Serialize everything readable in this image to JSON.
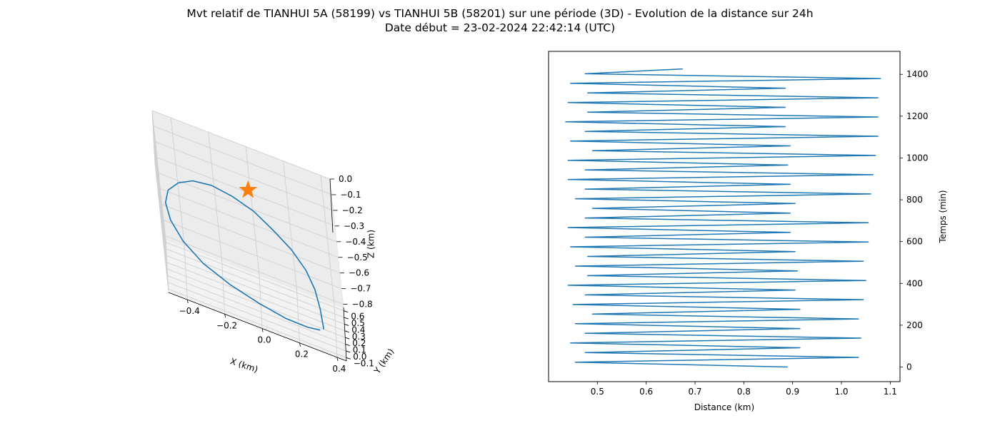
{
  "figure": {
    "title_line1": "Mvt relatif de TIANHUI 5A (58199) vs TIANHUI 5B (58201) sur une période (3D) - Evolution de la distance sur 24h",
    "title_line2": "Date début = 23-02-2024 22:42:14 (UTC)"
  },
  "colors": {
    "series": "#1f77b4",
    "marker": "#ff7f0e",
    "pane": "#f2f2f2",
    "grid": "#d0d0d0",
    "axis": "#000000"
  },
  "chart_data": [
    {
      "type": "line",
      "projection": "3d",
      "xlabel": "X (km)",
      "ylabel": "Y (km)",
      "zlabel": "Z (km)",
      "xlim": [
        -0.5,
        0.45
      ],
      "ylim": [
        -0.15,
        0.65
      ],
      "zlim": [
        -0.82,
        0.0
      ],
      "xticks": [
        -0.4,
        -0.2,
        0.0,
        0.2,
        0.4
      ],
      "xtick_labels": [
        "−0.4",
        "−0.2",
        "0.0",
        "0.2",
        "0.4"
      ],
      "yticks": [
        -0.1,
        0.0,
        0.1,
        0.2,
        0.3,
        0.4,
        0.5,
        0.6
      ],
      "ytick_labels": [
        "−0.1",
        "0.0",
        "0.1",
        "0.2",
        "0.3",
        "0.4",
        "0.5",
        "0.6"
      ],
      "zticks": [
        0.0,
        -0.1,
        -0.2,
        -0.3,
        -0.4,
        -0.5,
        -0.6,
        -0.7,
        -0.8
      ],
      "ztick_labels": [
        "0.0",
        "−0.1",
        "−0.2",
        "−0.3",
        "−0.4",
        "−0.5",
        "−0.6",
        "−0.7",
        "−0.8"
      ],
      "grid": true,
      "series": [
        {
          "marker": "line",
          "points": [
            [
              0.34,
              -0.03,
              -0.72
            ],
            [
              0.33,
              0.08,
              -0.64
            ],
            [
              0.31,
              0.18,
              -0.57
            ],
            [
              0.27,
              0.26,
              -0.5
            ],
            [
              0.2,
              0.33,
              -0.43
            ],
            [
              0.11,
              0.38,
              -0.37
            ],
            [
              0.01,
              0.42,
              -0.31
            ],
            [
              -0.1,
              0.43,
              -0.27
            ],
            [
              -0.21,
              0.43,
              -0.25
            ],
            [
              -0.31,
              0.39,
              -0.25
            ],
            [
              -0.39,
              0.32,
              -0.27
            ],
            [
              -0.45,
              0.24,
              -0.31
            ],
            [
              -0.47,
              0.15,
              -0.36
            ],
            [
              -0.45,
              0.05,
              -0.42
            ],
            [
              -0.39,
              -0.04,
              -0.49
            ],
            [
              -0.29,
              -0.1,
              -0.56
            ],
            [
              -0.15,
              -0.13,
              -0.62
            ],
            [
              0.0,
              -0.13,
              -0.67
            ],
            [
              0.14,
              -0.11,
              -0.71
            ],
            [
              0.25,
              -0.07,
              -0.73
            ],
            [
              0.32,
              -0.04,
              -0.73
            ]
          ]
        },
        {
          "marker": "star",
          "points": [
            [
              0.0,
              0.0,
              0.0
            ]
          ]
        }
      ]
    },
    {
      "type": "line",
      "xlabel": "Distance (km)",
      "ylabel": "Temps (min)",
      "xlim": [
        0.4,
        1.12
      ],
      "ylim": [
        -70,
        1510
      ],
      "xticks": [
        0.5,
        0.6,
        0.7,
        0.8,
        0.9,
        1.0,
        1.1
      ],
      "xtick_labels": [
        "0.5",
        "0.6",
        "0.7",
        "0.8",
        "0.9",
        "1.0",
        "1.1"
      ],
      "yticks": [
        0,
        200,
        400,
        600,
        800,
        1000,
        1200,
        1400
      ],
      "ytick_labels": [
        "0",
        "200",
        "400",
        "600",
        "800",
        "1000",
        "1200",
        "1400"
      ],
      "ylabel_position": "right",
      "grid": false,
      "series": [
        {
          "x": [
            0.89,
            0.455,
            1.035,
            0.475,
            0.915,
            0.445,
            1.04,
            0.475,
            0.915,
            0.455,
            1.035,
            0.49,
            0.915,
            0.45,
            1.045,
            0.475,
            0.905,
            0.44,
            1.05,
            0.48,
            0.91,
            0.455,
            1.045,
            0.48,
            0.905,
            0.445,
            1.055,
            0.475,
            0.895,
            0.44,
            1.055,
            0.475,
            0.895,
            0.49,
            0.905,
            0.455,
            1.06,
            0.475,
            0.895,
            0.44,
            1.065,
            0.475,
            0.89,
            0.44,
            1.07,
            0.49,
            0.895,
            0.445,
            1.075,
            0.475,
            0.885,
            0.435,
            1.075,
            0.48,
            0.885,
            0.44,
            1.075,
            0.48,
            0.885,
            0.445,
            1.08,
            0.475,
            0.675
          ],
          "y": [
            0,
            23,
            46,
            69,
            92,
            115,
            138,
            161,
            184,
            207,
            230,
            253,
            276,
            299,
            322,
            345,
            368,
            391,
            414,
            437,
            460,
            483,
            506,
            529,
            552,
            575,
            598,
            621,
            644,
            667,
            690,
            713,
            736,
            759,
            782,
            805,
            828,
            851,
            874,
            897,
            920,
            943,
            966,
            989,
            1012,
            1035,
            1058,
            1081,
            1104,
            1127,
            1150,
            1173,
            1196,
            1219,
            1242,
            1265,
            1288,
            1311,
            1334,
            1357,
            1380,
            1403,
            1426
          ]
        }
      ]
    }
  ]
}
